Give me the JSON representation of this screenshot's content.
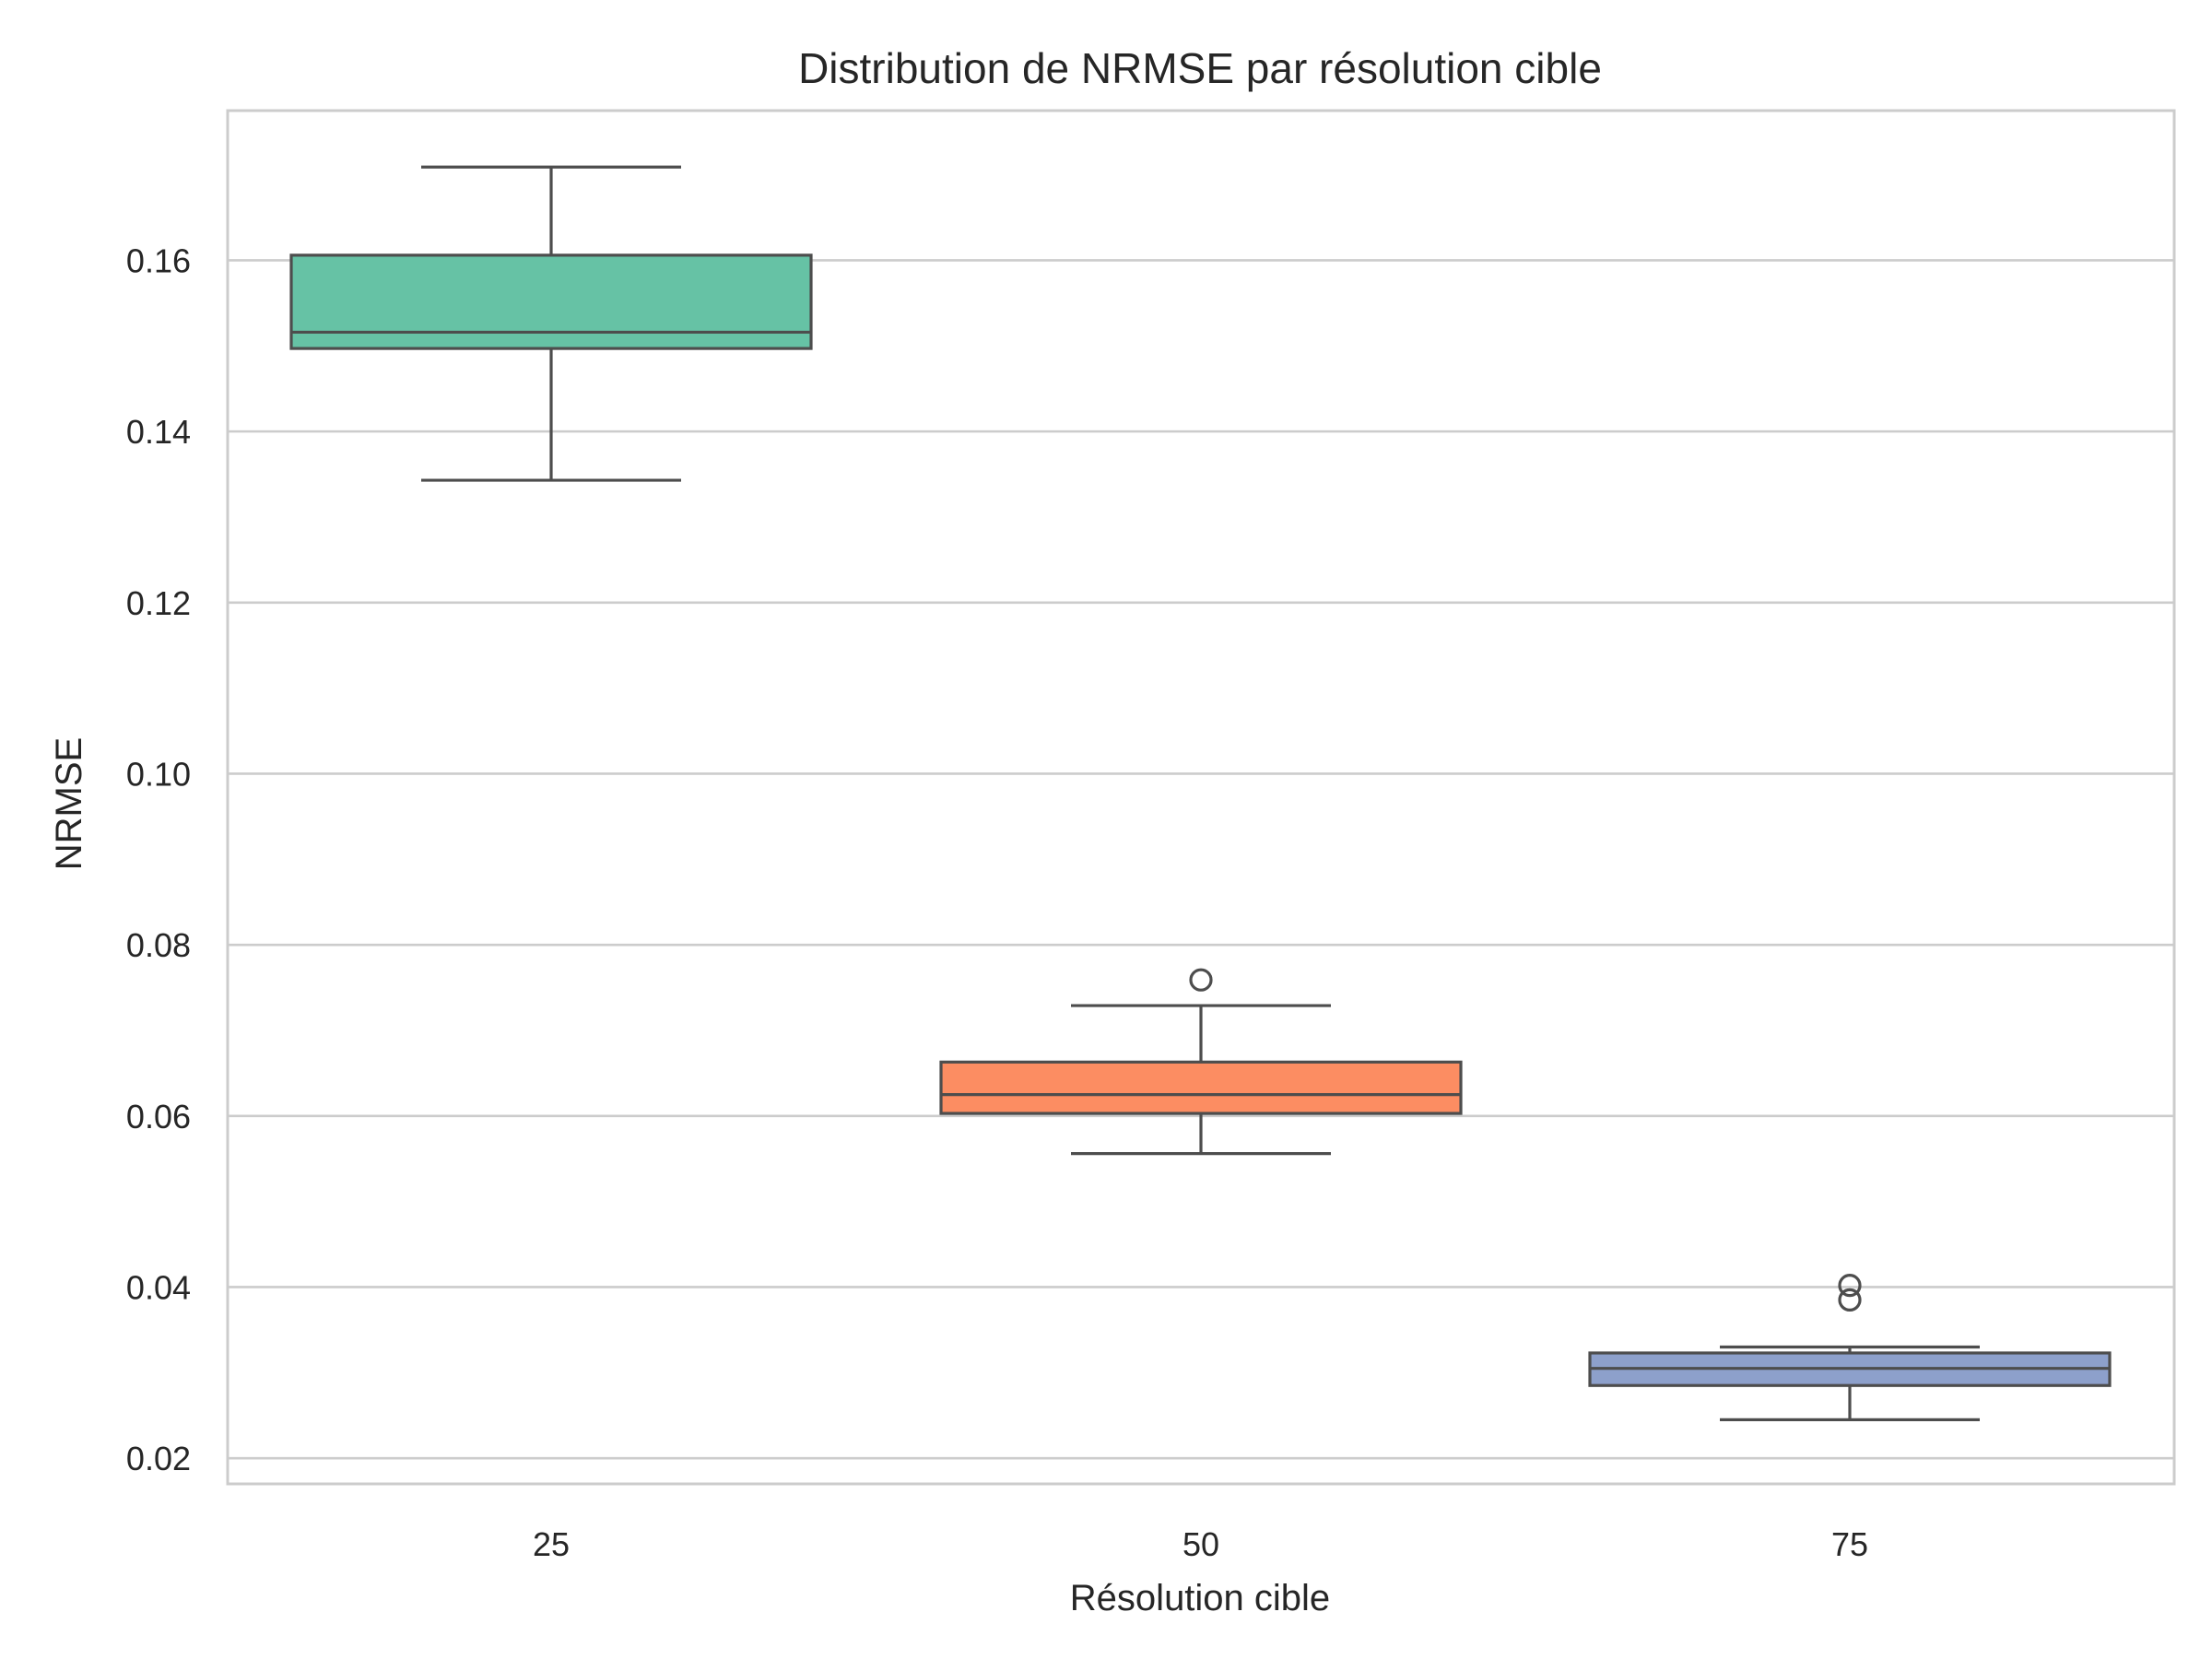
{
  "chart_data": {
    "type": "box",
    "title": "Distribution de NRMSE par résolution cible",
    "xlabel": "Résolution cible",
    "ylabel": "NRMSE",
    "categories": [
      "25",
      "50",
      "75"
    ],
    "ylim": [
      0.017,
      0.1775
    ],
    "yticks": [
      0.02,
      0.04,
      0.06,
      0.08,
      0.1,
      0.12,
      0.14,
      0.16
    ],
    "ytick_labels": [
      "0.02",
      "0.04",
      "0.06",
      "0.08",
      "0.10",
      "0.12",
      "0.14",
      "0.16"
    ],
    "grid": "horizontal",
    "boxes": [
      {
        "category": "25",
        "color": "#66c2a5",
        "whisker_low": 0.1343,
        "q1": 0.1497,
        "median": 0.1516,
        "q3": 0.1606,
        "whisker_high": 0.1709,
        "outliers": []
      },
      {
        "category": "50",
        "color": "#fc8d62",
        "whisker_low": 0.0556,
        "q1": 0.0603,
        "median": 0.0625,
        "q3": 0.0663,
        "whisker_high": 0.0729,
        "outliers": [
          0.0759
        ]
      },
      {
        "category": "75",
        "color": "#8da0cb",
        "whisker_low": 0.0245,
        "q1": 0.0285,
        "median": 0.0305,
        "q3": 0.0323,
        "whisker_high": 0.033,
        "outliers": [
          0.0385,
          0.0402
        ]
      }
    ]
  }
}
